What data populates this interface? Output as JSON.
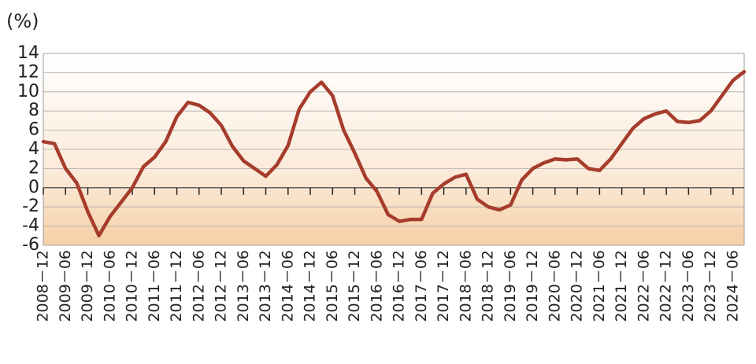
{
  "chart_data": {
    "type": "line",
    "y_unit": "(%)",
    "categories": [
      "2008－12",
      null,
      "2009－06",
      null,
      "2009－12",
      null,
      "2010－06",
      null,
      "2010－12",
      null,
      "2011－06",
      null,
      "2011－12",
      null,
      "2012－06",
      null,
      "2012－12",
      null,
      "2013－06",
      null,
      "2013－12",
      null,
      "2014－06",
      null,
      "2014－12",
      null,
      "2015－06",
      null,
      "2015－12",
      null,
      "2016－06",
      null,
      "2016－12",
      null,
      "2017－06",
      null,
      "2017－12",
      null,
      "2018－06",
      null,
      "2018－12",
      null,
      "2019－06",
      null,
      "2019－12",
      null,
      "2020－06",
      null,
      "2020－12",
      null,
      "2021－06",
      null,
      "2021－12",
      null,
      "2022－06",
      null,
      "2022－12",
      null,
      "2023－06",
      null,
      "2023－12",
      null,
      "2024－06",
      null
    ],
    "values": [
      4.8,
      4.6,
      2.0,
      0.5,
      -2.5,
      -5.0,
      -3.0,
      -1.5,
      0.0,
      2.2,
      3.2,
      4.8,
      7.4,
      8.9,
      8.6,
      7.8,
      6.5,
      4.3,
      2.8,
      2.0,
      1.2,
      2.4,
      4.4,
      8.2,
      10.0,
      11.0,
      9.6,
      6.0,
      3.6,
      1.0,
      -0.4,
      -2.8,
      -3.5,
      -3.3,
      -3.3,
      -0.6,
      0.4,
      1.1,
      1.4,
      -1.2,
      -2.0,
      -2.3,
      -1.8,
      0.8,
      2.0,
      2.6,
      3.0,
      2.9,
      3.0,
      2.0,
      1.8,
      3.0,
      4.6,
      6.2,
      7.2,
      7.7,
      8.0,
      6.9,
      6.8,
      7.0,
      8.0,
      9.6,
      11.2,
      12.1
    ],
    "color": "#a63c2c",
    "ylim": [
      -6,
      14
    ],
    "yticks": [
      -6,
      -4,
      -2,
      0,
      2,
      4,
      6,
      8,
      10,
      12,
      14
    ],
    "grid": true
  }
}
